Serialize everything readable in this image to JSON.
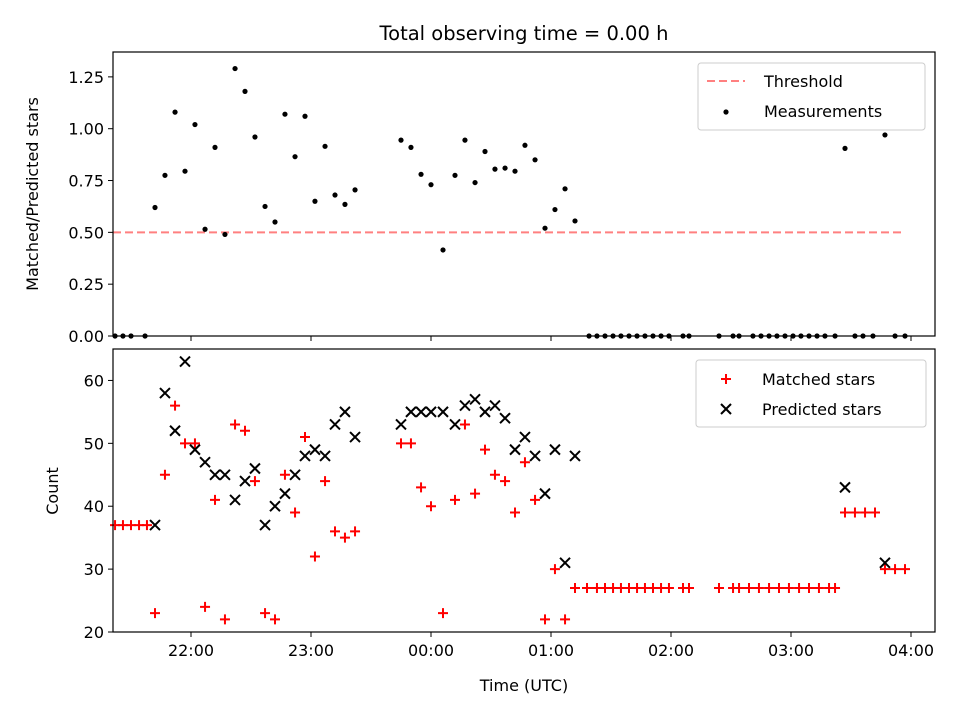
{
  "chart_data": [
    {
      "type": "scatter",
      "title": "Total observing time = 0.00 h",
      "xlabel": "",
      "ylabel": "Matched/Predicted stars",
      "xlim": [
        -2.65,
        4.2
      ],
      "ylim": [
        0.0,
        1.37
      ],
      "y_ticks": [
        "0.00",
        "0.25",
        "0.50",
        "0.75",
        "1.00",
        "1.25"
      ],
      "y_tick_values": [
        0.0,
        0.25,
        0.5,
        0.75,
        1.0,
        1.25
      ],
      "x_tick_values": [
        -2,
        -1,
        0,
        1,
        2,
        3,
        4
      ],
      "grid": false,
      "legend_position": "top-right",
      "threshold": {
        "name": "Threshold",
        "value": 0.5,
        "x_range": [
          -2.65,
          3.95
        ],
        "color": "#ff8080",
        "style": "dashed"
      },
      "series": [
        {
          "name": "Measurements",
          "color": "#000000",
          "marker": "dot",
          "points": [
            [
              -2.633,
              0
            ],
            [
              -2.567,
              0
            ],
            [
              -2.5,
              0
            ],
            [
              -2.383,
              0
            ],
            [
              -2.3,
              0.62
            ],
            [
              -2.217,
              0.775
            ],
            [
              -2.133,
              1.08
            ],
            [
              -2.05,
              0.795
            ],
            [
              -1.967,
              1.02
            ],
            [
              -1.883,
              0.515
            ],
            [
              -1.8,
              0.91
            ],
            [
              -1.717,
              0.49
            ],
            [
              -1.633,
              1.29
            ],
            [
              -1.55,
              1.18
            ],
            [
              -1.467,
              0.96
            ],
            [
              -1.383,
              0.625
            ],
            [
              -1.3,
              0.55
            ],
            [
              -1.217,
              1.07
            ],
            [
              -1.133,
              0.865
            ],
            [
              -1.05,
              1.06
            ],
            [
              -0.967,
              0.65
            ],
            [
              -0.883,
              0.915
            ],
            [
              -0.8,
              0.68
            ],
            [
              -0.717,
              0.635
            ],
            [
              -0.633,
              0.705
            ],
            [
              -0.25,
              0.945
            ],
            [
              -0.167,
              0.91
            ],
            [
              -0.083,
              0.78
            ],
            [
              0.0,
              0.73
            ],
            [
              0.1,
              0.415
            ],
            [
              0.2,
              0.775
            ],
            [
              0.283,
              0.945
            ],
            [
              0.367,
              0.74
            ],
            [
              0.45,
              0.89
            ],
            [
              0.533,
              0.805
            ],
            [
              0.617,
              0.81
            ],
            [
              0.7,
              0.795
            ],
            [
              0.783,
              0.92
            ],
            [
              0.867,
              0.85
            ],
            [
              0.95,
              0.52
            ],
            [
              1.033,
              0.61
            ],
            [
              1.117,
              0.71
            ],
            [
              1.2,
              0.555
            ],
            [
              1.317,
              0
            ],
            [
              1.383,
              0
            ],
            [
              1.45,
              0
            ],
            [
              1.517,
              0
            ],
            [
              1.583,
              0
            ],
            [
              1.65,
              0
            ],
            [
              1.717,
              0
            ],
            [
              1.783,
              0
            ],
            [
              1.85,
              0
            ],
            [
              1.917,
              0
            ],
            [
              1.983,
              0
            ],
            [
              2.1,
              0
            ],
            [
              2.15,
              0
            ],
            [
              2.4,
              0
            ],
            [
              2.517,
              0
            ],
            [
              2.567,
              0
            ],
            [
              2.683,
              0
            ],
            [
              2.75,
              0
            ],
            [
              2.817,
              0
            ],
            [
              2.883,
              0
            ],
            [
              2.95,
              0
            ],
            [
              3.017,
              0
            ],
            [
              3.083,
              0
            ],
            [
              3.15,
              0
            ],
            [
              3.217,
              0
            ],
            [
              3.283,
              0
            ],
            [
              3.367,
              0
            ],
            [
              3.45,
              0.905
            ],
            [
              3.533,
              0
            ],
            [
              3.6,
              0
            ],
            [
              3.683,
              0
            ],
            [
              3.783,
              0.97
            ],
            [
              3.867,
              0
            ],
            [
              3.95,
              0
            ]
          ]
        }
      ]
    },
    {
      "type": "scatter",
      "title": "",
      "xlabel": "Time (UTC)",
      "ylabel": "Count",
      "xlim": [
        -2.65,
        4.2
      ],
      "ylim": [
        20,
        65
      ],
      "y_ticks": [
        "20",
        "30",
        "40",
        "50",
        "60"
      ],
      "y_tick_values": [
        20,
        30,
        40,
        50,
        60
      ],
      "x_ticks": [
        "22:00",
        "23:00",
        "00:00",
        "01:00",
        "02:00",
        "03:00",
        "04:00"
      ],
      "x_tick_values": [
        -2,
        -1,
        0,
        1,
        2,
        3,
        4
      ],
      "grid": false,
      "legend_position": "top-right",
      "series": [
        {
          "name": "Matched stars",
          "color": "#ff0000",
          "marker": "plus",
          "points": [
            [
              -2.633,
              37
            ],
            [
              -2.567,
              37
            ],
            [
              -2.5,
              37
            ],
            [
              -2.433,
              37
            ],
            [
              -2.367,
              37
            ],
            [
              -2.3,
              23
            ],
            [
              -2.217,
              45
            ],
            [
              -2.133,
              56
            ],
            [
              -2.05,
              50
            ],
            [
              -1.967,
              50
            ],
            [
              -1.883,
              24
            ],
            [
              -1.8,
              41
            ],
            [
              -1.717,
              22
            ],
            [
              -1.633,
              53
            ],
            [
              -1.55,
              52
            ],
            [
              -1.467,
              44
            ],
            [
              -1.383,
              23
            ],
            [
              -1.3,
              22
            ],
            [
              -1.217,
              45
            ],
            [
              -1.133,
              39
            ],
            [
              -1.05,
              51
            ],
            [
              -0.967,
              32
            ],
            [
              -0.883,
              44
            ],
            [
              -0.8,
              36
            ],
            [
              -0.717,
              35
            ],
            [
              -0.633,
              36
            ],
            [
              -0.25,
              50
            ],
            [
              -0.167,
              50
            ],
            [
              -0.083,
              43
            ],
            [
              0.0,
              40
            ],
            [
              0.1,
              23
            ],
            [
              0.2,
              41
            ],
            [
              0.283,
              53
            ],
            [
              0.367,
              42
            ],
            [
              0.45,
              49
            ],
            [
              0.533,
              45
            ],
            [
              0.617,
              44
            ],
            [
              0.7,
              39
            ],
            [
              0.783,
              47
            ],
            [
              0.867,
              41
            ],
            [
              0.95,
              22
            ],
            [
              1.033,
              30
            ],
            [
              1.117,
              22
            ],
            [
              1.2,
              27
            ],
            [
              1.3,
              27
            ],
            [
              1.383,
              27
            ],
            [
              1.45,
              27
            ],
            [
              1.517,
              27
            ],
            [
              1.583,
              27
            ],
            [
              1.65,
              27
            ],
            [
              1.717,
              27
            ],
            [
              1.783,
              27
            ],
            [
              1.85,
              27
            ],
            [
              1.917,
              27
            ],
            [
              1.983,
              27
            ],
            [
              2.1,
              27
            ],
            [
              2.15,
              27
            ],
            [
              2.4,
              27
            ],
            [
              2.517,
              27
            ],
            [
              2.567,
              27
            ],
            [
              2.65,
              27
            ],
            [
              2.733,
              27
            ],
            [
              2.817,
              27
            ],
            [
              2.9,
              27
            ],
            [
              2.983,
              27
            ],
            [
              3.067,
              27
            ],
            [
              3.15,
              27
            ],
            [
              3.233,
              27
            ],
            [
              3.317,
              27
            ],
            [
              3.367,
              27
            ],
            [
              3.45,
              39
            ],
            [
              3.533,
              39
            ],
            [
              3.617,
              39
            ],
            [
              3.7,
              39
            ],
            [
              3.783,
              30
            ],
            [
              3.867,
              30
            ],
            [
              3.95,
              30
            ]
          ]
        },
        {
          "name": "Predicted stars",
          "color": "#000000",
          "marker": "x",
          "points": [
            [
              -2.3,
              37
            ],
            [
              -2.217,
              58
            ],
            [
              -2.133,
              52
            ],
            [
              -2.05,
              63
            ],
            [
              -1.967,
              49
            ],
            [
              -1.883,
              47
            ],
            [
              -1.8,
              45
            ],
            [
              -1.717,
              45
            ],
            [
              -1.633,
              41
            ],
            [
              -1.55,
              44
            ],
            [
              -1.467,
              46
            ],
            [
              -1.383,
              37
            ],
            [
              -1.3,
              40
            ],
            [
              -1.217,
              42
            ],
            [
              -1.133,
              45
            ],
            [
              -1.05,
              48
            ],
            [
              -0.967,
              49
            ],
            [
              -0.883,
              48
            ],
            [
              -0.8,
              53
            ],
            [
              -0.717,
              55
            ],
            [
              -0.633,
              51
            ],
            [
              -0.25,
              53
            ],
            [
              -0.167,
              55
            ],
            [
              -0.083,
              55
            ],
            [
              0.0,
              55
            ],
            [
              0.1,
              55
            ],
            [
              0.2,
              53
            ],
            [
              0.283,
              56
            ],
            [
              0.367,
              57
            ],
            [
              0.45,
              55
            ],
            [
              0.533,
              56
            ],
            [
              0.617,
              54
            ],
            [
              0.7,
              49
            ],
            [
              0.783,
              51
            ],
            [
              0.867,
              48
            ],
            [
              0.95,
              42
            ],
            [
              1.033,
              49
            ],
            [
              1.117,
              31
            ],
            [
              1.2,
              48
            ],
            [
              3.45,
              43
            ],
            [
              3.783,
              31
            ]
          ]
        }
      ]
    }
  ],
  "legend": {
    "top": [
      {
        "label": "Threshold",
        "color": "#ff8080",
        "marker": "dash"
      },
      {
        "label": "Measurements",
        "color": "#000000",
        "marker": "dot"
      }
    ],
    "bottom": [
      {
        "label": "Matched stars",
        "color": "#ff0000",
        "marker": "plus"
      },
      {
        "label": "Predicted stars",
        "color": "#000000",
        "marker": "x"
      }
    ]
  }
}
